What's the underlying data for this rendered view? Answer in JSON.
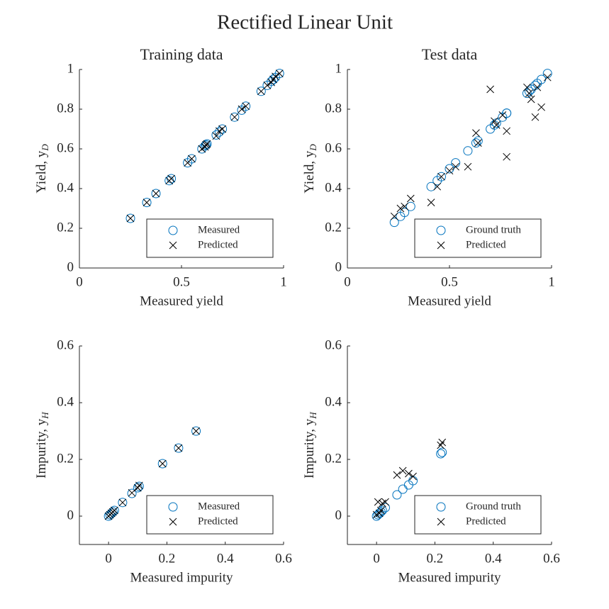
{
  "title": "Rectified Linear Unit",
  "chart_data": [
    {
      "type": "scatter",
      "title": "Training data",
      "xlabel": "Measured yield",
      "ylabel": "Yield, y",
      "ylabel_subscript": "D",
      "xlim": [
        0,
        1
      ],
      "ylim": [
        0,
        1
      ],
      "xticks": [
        0,
        0.5,
        1
      ],
      "yticks": [
        0,
        0.2,
        0.4,
        0.6,
        0.8,
        1
      ],
      "legend": "lower right",
      "series": [
        {
          "name": "Measured",
          "color": "#0072bd",
          "marker": "o",
          "x": [
            0.25,
            0.33,
            0.375,
            0.44,
            0.45,
            0.53,
            0.55,
            0.6,
            0.615,
            0.62,
            0.625,
            0.67,
            0.685,
            0.7,
            0.76,
            0.795,
            0.815,
            0.89,
            0.92,
            0.94,
            0.95,
            0.96,
            0.98
          ],
          "values": [
            0.25,
            0.33,
            0.375,
            0.44,
            0.45,
            0.53,
            0.55,
            0.6,
            0.615,
            0.62,
            0.625,
            0.67,
            0.685,
            0.7,
            0.76,
            0.795,
            0.815,
            0.89,
            0.92,
            0.94,
            0.95,
            0.96,
            0.98
          ]
        },
        {
          "name": "Predicted",
          "color": "#000000",
          "marker": "x",
          "x": [
            0.25,
            0.33,
            0.375,
            0.44,
            0.45,
            0.53,
            0.55,
            0.6,
            0.615,
            0.62,
            0.625,
            0.67,
            0.685,
            0.7,
            0.76,
            0.795,
            0.815,
            0.89,
            0.92,
            0.94,
            0.95,
            0.96,
            0.98
          ],
          "values": [
            0.25,
            0.33,
            0.375,
            0.44,
            0.45,
            0.53,
            0.55,
            0.6,
            0.61,
            0.62,
            0.625,
            0.665,
            0.69,
            0.7,
            0.76,
            0.8,
            0.815,
            0.89,
            0.92,
            0.935,
            0.95,
            0.965,
            0.98
          ]
        }
      ]
    },
    {
      "type": "scatter",
      "title": "Test data",
      "xlabel": "Measured yield",
      "ylabel": "Yield, y",
      "ylabel_subscript": "D",
      "xlim": [
        0,
        1
      ],
      "ylim": [
        0,
        1
      ],
      "xticks": [
        0,
        0.5,
        1
      ],
      "yticks": [
        0,
        0.2,
        0.4,
        0.6,
        0.8,
        1
      ],
      "legend": "lower right",
      "series": [
        {
          "name": "Ground truth",
          "color": "#0072bd",
          "marker": "o",
          "x": [
            0.23,
            0.26,
            0.28,
            0.31,
            0.41,
            0.44,
            0.46,
            0.5,
            0.53,
            0.59,
            0.63,
            0.64,
            0.7,
            0.72,
            0.73,
            0.76,
            0.78,
            0.78,
            0.88,
            0.89,
            0.9,
            0.92,
            0.93,
            0.95,
            0.98
          ],
          "values": [
            0.23,
            0.26,
            0.28,
            0.31,
            0.41,
            0.44,
            0.46,
            0.5,
            0.53,
            0.59,
            0.63,
            0.64,
            0.7,
            0.72,
            0.73,
            0.76,
            0.78,
            0.78,
            0.88,
            0.89,
            0.9,
            0.92,
            0.93,
            0.95,
            0.98
          ]
        },
        {
          "name": "Predicted",
          "color": "#000000",
          "marker": "x",
          "x": [
            0.23,
            0.26,
            0.28,
            0.31,
            0.41,
            0.44,
            0.46,
            0.5,
            0.53,
            0.59,
            0.63,
            0.64,
            0.7,
            0.72,
            0.73,
            0.76,
            0.78,
            0.78,
            0.88,
            0.89,
            0.9,
            0.92,
            0.93,
            0.95,
            0.98
          ],
          "values": [
            0.26,
            0.3,
            0.31,
            0.35,
            0.33,
            0.41,
            0.46,
            0.49,
            0.51,
            0.51,
            0.68,
            0.63,
            0.9,
            0.74,
            0.72,
            0.77,
            0.69,
            0.56,
            0.91,
            0.88,
            0.85,
            0.76,
            0.91,
            0.81,
            0.96
          ]
        }
      ]
    },
    {
      "type": "scatter",
      "xlabel": "Measured impurity",
      "ylabel": "Impurity, y",
      "ylabel_subscript": "H",
      "xlim": [
        -0.1,
        0.6
      ],
      "ylim": [
        -0.1,
        0.6
      ],
      "xticks": [
        0,
        0.2,
        0.4,
        0.6
      ],
      "yticks": [
        0,
        0.2,
        0.4,
        0.6
      ],
      "legend": "lower right",
      "series": [
        {
          "name": "Measured",
          "color": "#0072bd",
          "marker": "o",
          "x": [
            0,
            0.005,
            0.01,
            0.015,
            0.02,
            0.048,
            0.08,
            0.1,
            0.105,
            0.185,
            0.24,
            0.3
          ],
          "values": [
            0,
            0.005,
            0.01,
            0.015,
            0.02,
            0.048,
            0.08,
            0.1,
            0.105,
            0.185,
            0.24,
            0.3
          ]
        },
        {
          "name": "Predicted",
          "color": "#000000",
          "marker": "x",
          "x": [
            0,
            0.005,
            0.01,
            0.015,
            0.02,
            0.048,
            0.08,
            0.1,
            0.105,
            0.185,
            0.24,
            0.3
          ],
          "values": [
            0,
            0.005,
            0.01,
            0.015,
            0.02,
            0.048,
            0.082,
            0.1,
            0.108,
            0.185,
            0.24,
            0.3
          ]
        }
      ]
    },
    {
      "type": "scatter",
      "xlabel": "Measured impurity",
      "ylabel": "Impurity, y",
      "ylabel_subscript": "H",
      "xlim": [
        -0.1,
        0.6
      ],
      "ylim": [
        -0.1,
        0.6
      ],
      "xticks": [
        0,
        0.2,
        0.4,
        0.6
      ],
      "yticks": [
        0,
        0.2,
        0.4,
        0.6
      ],
      "legend": "lower right",
      "series": [
        {
          "name": "Ground truth",
          "color": "#0072bd",
          "marker": "o",
          "x": [
            0,
            0.005,
            0.01,
            0.015,
            0.02,
            0.03,
            0.07,
            0.09,
            0.11,
            0.125,
            0.22,
            0.225
          ],
          "values": [
            0,
            0.005,
            0.01,
            0.015,
            0.02,
            0.03,
            0.075,
            0.095,
            0.11,
            0.125,
            0.22,
            0.225
          ]
        },
        {
          "name": "Predicted",
          "color": "#000000",
          "marker": "x",
          "x": [
            0,
            0.005,
            0.01,
            0.015,
            0.02,
            0.03,
            0.07,
            0.09,
            0.11,
            0.125,
            0.22,
            0.225
          ],
          "values": [
            0.005,
            0.05,
            0.01,
            0.02,
            0.045,
            0.05,
            0.145,
            0.16,
            0.15,
            0.14,
            0.25,
            0.26
          ]
        }
      ]
    }
  ]
}
